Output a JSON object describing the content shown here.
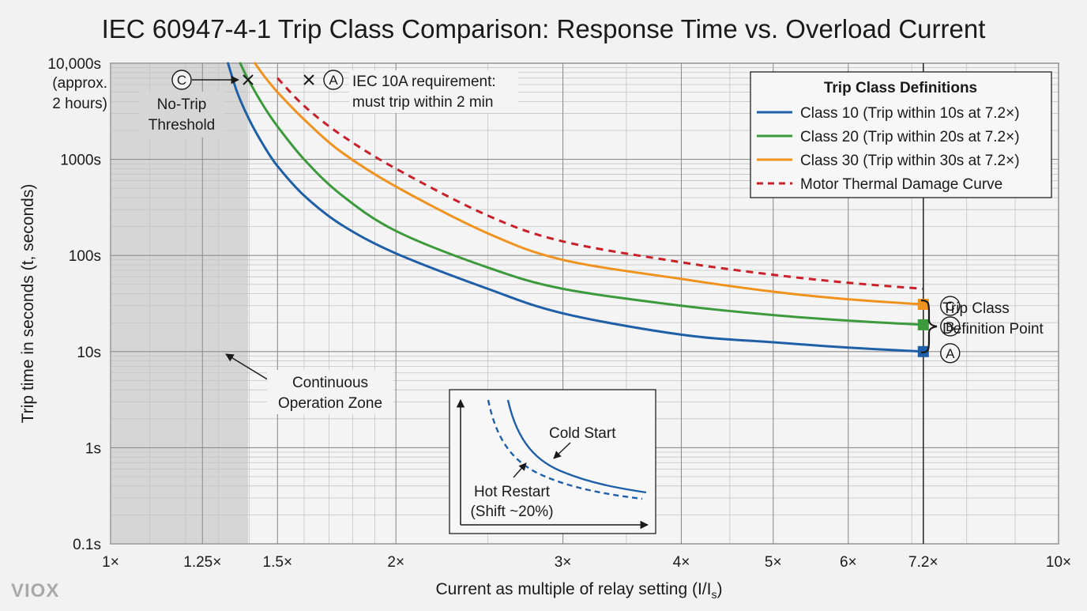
{
  "chart_data": {
    "type": "line",
    "title": "IEC 60947-4-1 Trip Class Comparison: Response Time vs. Overload Current",
    "xlabel": "Current as multiple of relay setting (I/Is)",
    "xlabel_main": "Current as multiple of relay setting (I/I",
    "xlabel_sub": "s",
    "xlabel_end": ")",
    "ylabel": "Trip time in seconds (t, seconds)",
    "x_scale": "log",
    "y_scale": "log",
    "xlim": [
      1,
      10
    ],
    "ylim": [
      0.1,
      10000
    ],
    "grid": true,
    "x_ticks": [
      {
        "value": 1,
        "label": "1×"
      },
      {
        "value": 1.25,
        "label": "1.25×"
      },
      {
        "value": 1.5,
        "label": "1.5×"
      },
      {
        "value": 2,
        "label": "2×"
      },
      {
        "value": 3,
        "label": "3×"
      },
      {
        "value": 4,
        "label": "4×"
      },
      {
        "value": 5,
        "label": "5×"
      },
      {
        "value": 6,
        "label": "6×"
      },
      {
        "value": 7.2,
        "label": "7.2×"
      },
      {
        "value": 10,
        "label": "10×"
      }
    ],
    "y_ticks": [
      {
        "value": 0.1,
        "label": "0.1s"
      },
      {
        "value": 1,
        "label": "1s"
      },
      {
        "value": 10,
        "label": "10s"
      },
      {
        "value": 100,
        "label": "100s"
      },
      {
        "value": 1000,
        "label": "1000s"
      },
      {
        "value": 10000,
        "label": "10,000s"
      }
    ],
    "y_top_note": [
      "(approx.",
      "2 hours)"
    ],
    "legend": {
      "title": "Trip Class Definitions",
      "position": "top-right"
    },
    "series": [
      {
        "name": "Class 10 (Trip within 10s at 7.2×)",
        "color": "#1f5fa8",
        "dash": false,
        "x": [
          1.33,
          1.36,
          1.4,
          1.45,
          1.5,
          1.6,
          1.75,
          2.0,
          2.5,
          3.0,
          4.0,
          5.0,
          6.0,
          7.2
        ],
        "y": [
          10000,
          5000,
          2600,
          1400,
          850,
          420,
          210,
          105,
          45,
          25,
          15,
          12.5,
          11,
          10
        ]
      },
      {
        "name": "Class 20 (Trip within 20s at 7.2×)",
        "color": "#3c9a3c",
        "dash": false,
        "x": [
          1.37,
          1.4,
          1.45,
          1.5,
          1.6,
          1.75,
          2.0,
          2.5,
          3.0,
          4.0,
          5.0,
          6.0,
          7.2
        ],
        "y": [
          10000,
          6500,
          3600,
          2200,
          1000,
          430,
          180,
          75,
          45,
          30,
          24,
          21,
          19
        ]
      },
      {
        "name": "Class 30 (Trip within 30s at 7.2×)",
        "color": "#f0921e",
        "dash": false,
        "x": [
          1.42,
          1.45,
          1.5,
          1.6,
          1.75,
          2.0,
          2.5,
          3.0,
          4.0,
          5.0,
          6.0,
          7.2
        ],
        "y": [
          10000,
          7500,
          5000,
          2600,
          1200,
          520,
          170,
          90,
          57,
          42,
          35,
          31
        ]
      },
      {
        "name": "Motor Thermal Damage Curve",
        "color": "#c9202a",
        "dash": true,
        "x": [
          1.5,
          1.6,
          1.75,
          2.0,
          2.5,
          3.0,
          4.0,
          5.0,
          6.0,
          7.2
        ],
        "y": [
          7000,
          3600,
          1800,
          800,
          260,
          140,
          85,
          63,
          52,
          45
        ]
      }
    ],
    "definition_points": [
      {
        "letter": "A",
        "x": 7.2,
        "y": 10,
        "color": "#1f5fa8"
      },
      {
        "letter": "B",
        "x": 7.2,
        "y": 19,
        "color": "#3c9a3c"
      },
      {
        "letter": "C",
        "x": 7.2,
        "y": 31,
        "color": "#f0921e"
      }
    ],
    "definition_label": [
      "Trip Class",
      "Definition Point"
    ],
    "no_trip_zone": {
      "label": [
        "No-Trip",
        "Threshold"
      ],
      "circle_letter": "C",
      "x_from": 1,
      "x_to": 1.25
    },
    "requirement_marker": {
      "circle_letter": "A",
      "x": 1.5,
      "text": [
        "IEC 10A requirement:",
        "must trip within 2 min"
      ]
    },
    "continuous_zone_label": [
      "Continuous",
      "Operation Zone"
    ],
    "inset": {
      "cold_label": "Cold Start",
      "hot_label": [
        "Hot Restart",
        "(Shift ~20%)"
      ]
    }
  },
  "brand": {
    "logo_text": "VIOX"
  }
}
